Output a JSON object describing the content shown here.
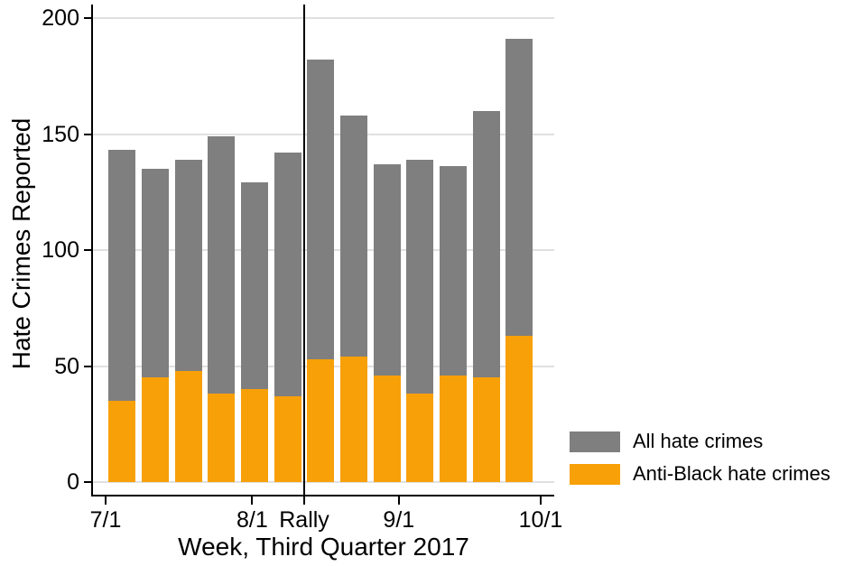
{
  "chart_data": {
    "type": "bar",
    "title": "",
    "xlabel": "Week, Third Quarter 2017",
    "ylabel": "Hate Crimes Reported",
    "ylim": [
      0,
      200
    ],
    "yticks": [
      0,
      50,
      100,
      150,
      200
    ],
    "grid": "horizontal",
    "x_axis": {
      "unit": "days after 7/1/2017",
      "range_days": [
        0,
        92
      ],
      "ticks": [
        {
          "label": "7/1",
          "day": 0
        },
        {
          "label": "8/1",
          "day": 31
        },
        {
          "label": "Rally",
          "day": 42,
          "rally": true
        },
        {
          "label": "9/1",
          "day": 62
        },
        {
          "label": "10/1",
          "day": 92
        }
      ]
    },
    "rally_line_day": 42,
    "week_start_days": [
      0,
      7,
      14,
      21,
      28,
      35,
      42,
      49,
      56,
      63,
      70,
      77,
      84
    ],
    "series": [
      {
        "name": "All hate crimes",
        "color": "#7f7f7f",
        "values": [
          143,
          135,
          139,
          149,
          129,
          142,
          182,
          158,
          137,
          139,
          136,
          160,
          191
        ]
      },
      {
        "name": "Anti-Black hate crimes",
        "color": "#f7a008",
        "values": [
          35,
          45,
          48,
          38,
          40,
          37,
          53,
          54,
          46,
          38,
          46,
          45,
          63
        ]
      }
    ],
    "legend_position": "right-lower"
  },
  "colors": {
    "background": "#ffffff",
    "grid": "#e0e0e0",
    "axis": "#000000",
    "all_hate_crimes": "#7f7f7f",
    "anti_black_hate_crimes": "#f7a008"
  }
}
